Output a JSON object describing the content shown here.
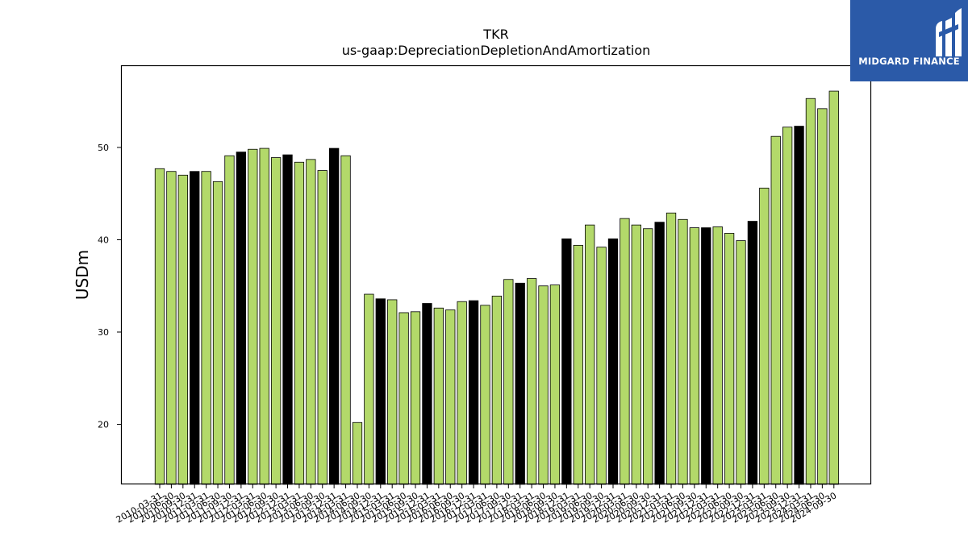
{
  "chart_data": {
    "type": "bar",
    "title": "TKR",
    "subtitle": "us-gaap:DepreciationDepletionAndAmortization",
    "xlabel": "",
    "ylabel": "USDm",
    "ylim": [
      13.5,
      58.9
    ],
    "yticks": [
      20,
      30,
      40,
      50
    ],
    "grid": false,
    "categories": [
      "2010-03-31",
      "2010-06-30",
      "2010-09-30",
      "2010-12-31",
      "2011-03-31",
      "2011-06-30",
      "2011-09-30",
      "2011-12-31",
      "2012-03-31",
      "2012-06-30",
      "2012-09-30",
      "2012-12-31",
      "2013-03-31",
      "2013-06-30",
      "2013-09-30",
      "2013-12-31",
      "2014-03-31",
      "2014-06-30",
      "2014-09-30",
      "2014-12-31",
      "2015-03-31",
      "2015-06-30",
      "2015-09-30",
      "2015-12-31",
      "2016-03-31",
      "2016-06-30",
      "2016-09-30",
      "2016-12-31",
      "2017-03-31",
      "2017-06-30",
      "2017-09-30",
      "2017-12-31",
      "2018-03-31",
      "2018-06-30",
      "2018-09-30",
      "2018-12-31",
      "2019-03-31",
      "2019-06-30",
      "2019-09-30",
      "2019-12-31",
      "2020-03-31",
      "2020-06-30",
      "2020-09-30",
      "2020-12-31",
      "2021-03-31",
      "2021-06-30",
      "2021-09-30",
      "2021-12-31",
      "2022-03-31",
      "2022-06-30",
      "2022-09-30",
      "2022-12-31",
      "2023-03-31",
      "2023-06-30",
      "2023-09-30",
      "2023-12-31",
      "2024-03-31",
      "2024-06-30",
      "2024-09-30"
    ],
    "values": [
      47.7,
      47.4,
      47.0,
      47.4,
      47.4,
      46.3,
      49.1,
      49.5,
      49.8,
      49.9,
      48.9,
      49.2,
      48.4,
      48.7,
      47.5,
      49.9,
      49.1,
      20.2,
      34.1,
      33.6,
      33.5,
      32.1,
      32.2,
      33.1,
      32.6,
      32.4,
      33.3,
      33.4,
      32.9,
      33.9,
      35.7,
      35.3,
      35.8,
      35.0,
      35.1,
      40.1,
      39.4,
      41.6,
      39.2,
      40.1,
      42.3,
      41.6,
      41.2,
      41.9,
      42.9,
      42.2,
      41.3,
      41.3,
      41.4,
      40.7,
      39.9,
      42.0,
      45.6,
      51.2,
      52.2,
      52.3,
      55.3,
      54.2,
      56.1
    ],
    "highlight": [
      false,
      false,
      false,
      true,
      false,
      false,
      false,
      true,
      false,
      false,
      false,
      true,
      false,
      false,
      false,
      true,
      false,
      false,
      false,
      true,
      false,
      false,
      false,
      true,
      false,
      false,
      false,
      true,
      false,
      false,
      false,
      true,
      false,
      false,
      false,
      true,
      false,
      false,
      false,
      true,
      false,
      false,
      false,
      true,
      false,
      false,
      false,
      true,
      false,
      false,
      false,
      true,
      false,
      false,
      false,
      true,
      false,
      false,
      false
    ],
    "colors": {
      "bar": "#b3d96a",
      "highlight": "#000000",
      "edge": "#000000"
    }
  },
  "logo": {
    "text": "MIDGARD FINANCE",
    "background": "#2b5aa8"
  }
}
